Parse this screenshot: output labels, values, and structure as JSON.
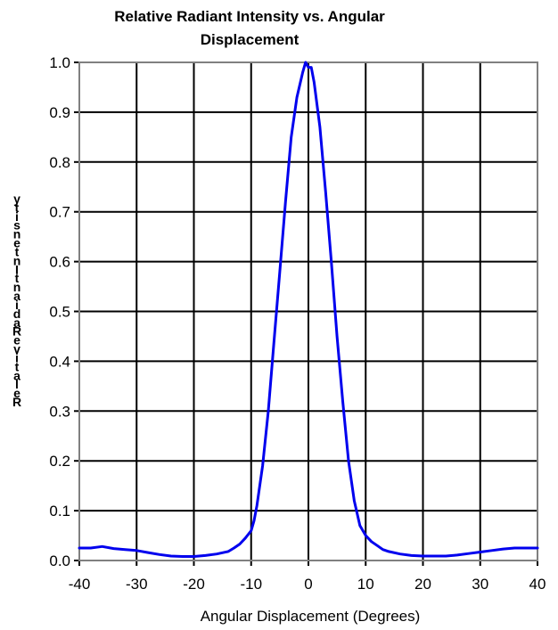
{
  "chart_data": {
    "type": "line",
    "title_lines": [
      "Relative Radiant Intensity vs. Angular",
      "Displacement"
    ],
    "xlabel": "Angular Displacement (Degrees)",
    "ylabel_chars": [
      "y",
      "t",
      "i",
      "s",
      "n",
      "e",
      "t",
      "n",
      "I",
      "t",
      "n",
      "a",
      "i",
      "d",
      "a",
      "R",
      "e",
      "v",
      "i",
      "t",
      "a",
      "l",
      "e",
      "R"
    ],
    "xlim": [
      -40,
      40
    ],
    "ylim": [
      0,
      1.0
    ],
    "x_ticks": [
      -40,
      -30,
      -20,
      -10,
      0,
      10,
      20,
      30,
      40
    ],
    "x_tick_labels": [
      "-40",
      "-30",
      "-20",
      "-10",
      "0",
      "10",
      "20",
      "30",
      "40"
    ],
    "y_ticks": [
      0,
      0.1,
      0.2,
      0.3,
      0.4,
      0.5,
      0.6,
      0.7,
      0.8,
      0.9,
      1.0
    ],
    "y_tick_labels": [
      "0.0",
      "0.1",
      "0.2",
      "0.3",
      "0.4",
      "0.5",
      "0.6",
      "0.7",
      "0.8",
      "0.9",
      "1.0"
    ],
    "grid": true,
    "line_color": "#0000ee",
    "grid_color": "#000000",
    "plot_border_color": "#808080",
    "series": [
      {
        "x": [
          -40,
          -38,
          -36,
          -34,
          -32,
          -30,
          -28,
          -26,
          -24,
          -22,
          -20,
          -18,
          -16,
          -14,
          -13,
          -12,
          -11,
          -10,
          -9.5,
          -9,
          -8,
          -7,
          -6,
          -5,
          -4,
          -3,
          -2,
          -1,
          -0.5,
          0,
          0.5,
          1,
          2,
          3,
          4,
          5,
          6,
          7,
          8,
          9,
          10,
          11,
          12,
          13,
          14,
          16,
          18,
          20,
          22,
          24,
          26,
          28,
          30,
          32,
          34,
          36,
          38,
          40
        ],
        "y": [
          0.025,
          0.025,
          0.028,
          0.024,
          0.022,
          0.02,
          0.016,
          0.012,
          0.009,
          0.008,
          0.008,
          0.01,
          0.013,
          0.018,
          0.025,
          0.033,
          0.045,
          0.06,
          0.08,
          0.11,
          0.19,
          0.3,
          0.44,
          0.58,
          0.72,
          0.85,
          0.93,
          0.98,
          1.0,
          0.99,
          0.99,
          0.96,
          0.87,
          0.74,
          0.6,
          0.45,
          0.32,
          0.2,
          0.12,
          0.07,
          0.05,
          0.038,
          0.03,
          0.022,
          0.018,
          0.013,
          0.01,
          0.009,
          0.009,
          0.009,
          0.011,
          0.014,
          0.017,
          0.02,
          0.023,
          0.025,
          0.025,
          0.025
        ]
      }
    ]
  }
}
